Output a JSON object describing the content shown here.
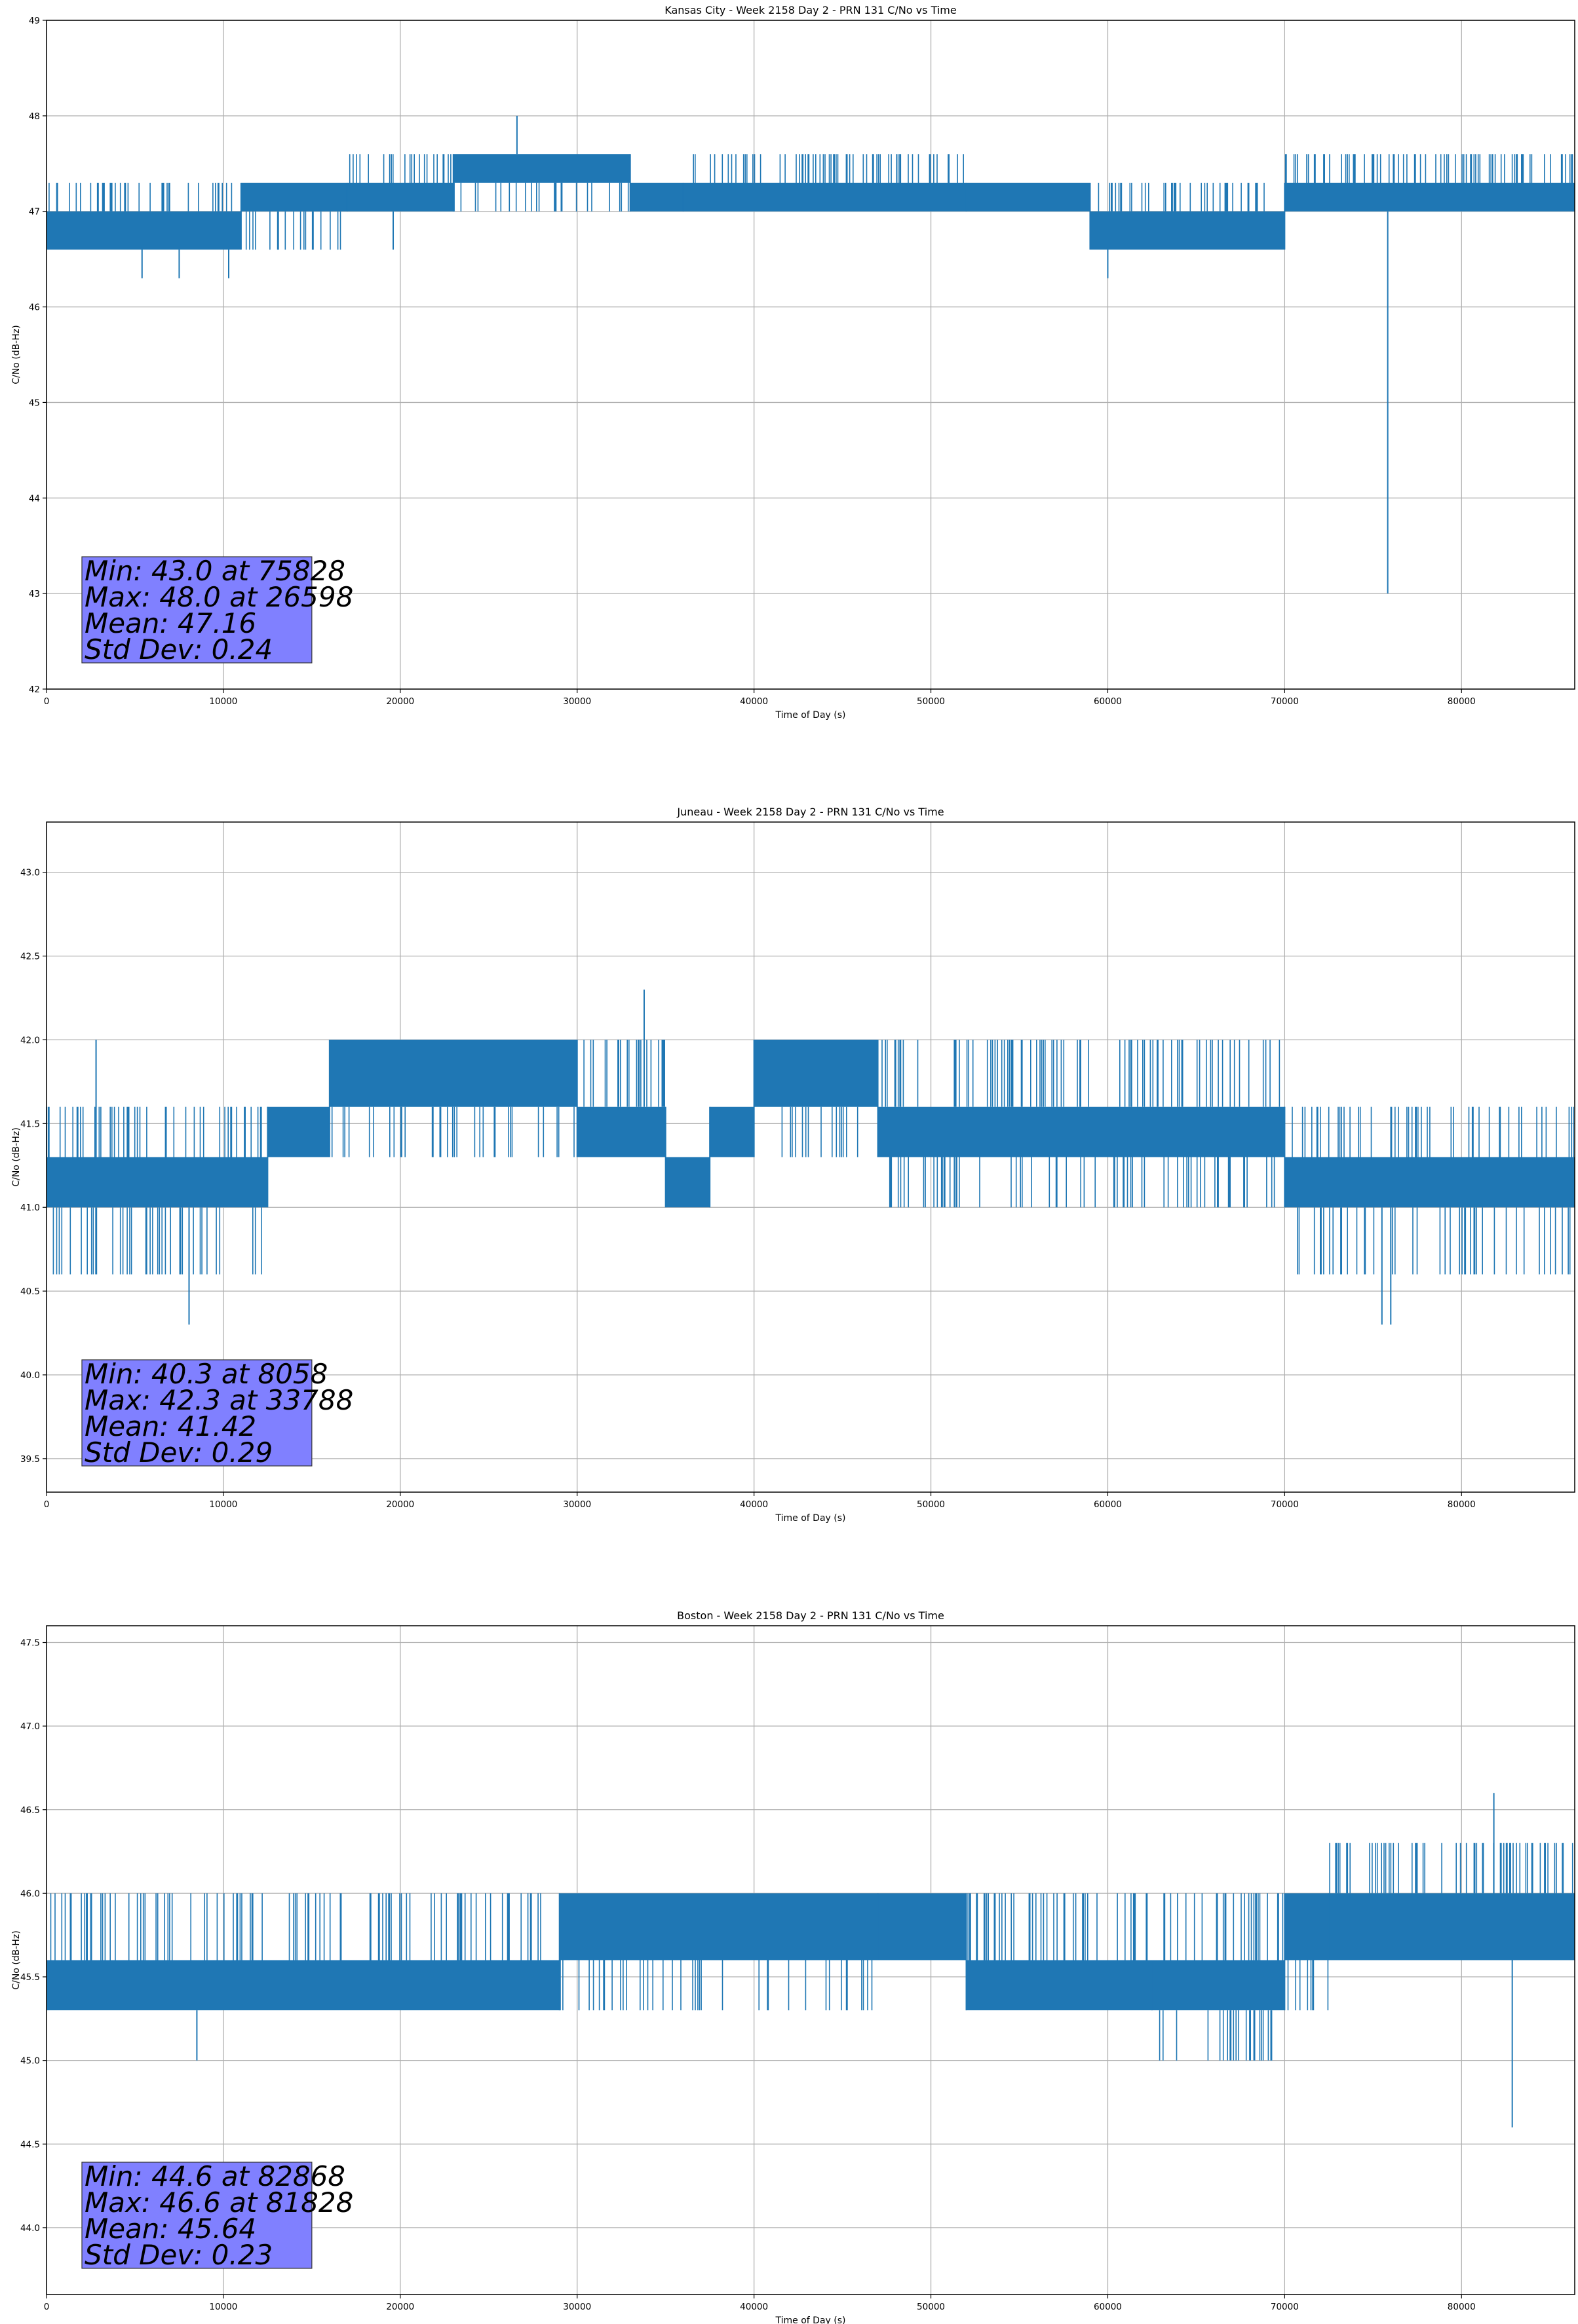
{
  "chart_data": [
    {
      "type": "line",
      "title": "Kansas City - Week 2158 Day 2 - PRN 131 C/No vs Time",
      "xlabel": "Time of Day (s)",
      "ylabel": "C/No (dB-Hz)",
      "xlim": [
        0,
        86400
      ],
      "ylim": [
        42,
        49
      ],
      "xticks": [
        0,
        10000,
        20000,
        30000,
        40000,
        50000,
        60000,
        70000,
        80000
      ],
      "yticks": [
        "42",
        "43",
        "44",
        "45",
        "46",
        "47",
        "48",
        "49"
      ],
      "grid": true,
      "color": "#1f77b4",
      "levels": [
        46.6,
        47.0,
        47.3,
        47.6
      ],
      "segments": [
        {
          "x": [
            0,
            11000
          ],
          "low": 46.6,
          "high": 47.0,
          "flick_high": 47.3
        },
        {
          "x": [
            11000,
            17000
          ],
          "low": 47.0,
          "high": 47.3,
          "flick_low": 46.6
        },
        {
          "x": [
            17000,
            23000
          ],
          "low": 47.0,
          "high": 47.3,
          "flick_high": 47.6
        },
        {
          "x": [
            23000,
            33000
          ],
          "low": 47.3,
          "high": 47.6,
          "flick_low": 47.0
        },
        {
          "x": [
            33000,
            36000
          ],
          "low": 47.0,
          "high": 47.3
        },
        {
          "x": [
            36000,
            52000
          ],
          "low": 47.0,
          "high": 47.3,
          "flick_high": 47.6
        },
        {
          "x": [
            52000,
            59000
          ],
          "low": 47.0,
          "high": 47.3
        },
        {
          "x": [
            59000,
            70000
          ],
          "low": 46.6,
          "high": 47.0,
          "flick_high": 47.3
        },
        {
          "x": [
            70000,
            86400
          ],
          "low": 47.0,
          "high": 47.3,
          "flick_high": 47.6
        }
      ],
      "spikes": [
        {
          "x": 5400,
          "y": 46.3
        },
        {
          "x": 7500,
          "y": 46.3
        },
        {
          "x": 10300,
          "y": 46.3
        },
        {
          "x": 19600,
          "y": 46.6
        },
        {
          "x": 26598,
          "y": 48.0
        },
        {
          "x": 60000,
          "y": 46.3
        },
        {
          "x": 75828,
          "y": 43.0
        }
      ],
      "stats": {
        "min": "Min: 43.0 at 75828",
        "max": "Max: 48.0 at 26598",
        "mean": "Mean: 47.16",
        "std": "Std Dev: 0.24"
      }
    },
    {
      "type": "line",
      "title": "Juneau - Week 2158 Day 2 - PRN 131 C/No vs Time",
      "xlabel": "Time of Day (s)",
      "ylabel": "C/No (dB-Hz)",
      "xlim": [
        0,
        86400
      ],
      "ylim": [
        39.3,
        43.3
      ],
      "xticks": [
        0,
        10000,
        20000,
        30000,
        40000,
        50000,
        60000,
        70000,
        80000
      ],
      "yticks": [
        "39.5",
        "40.0",
        "40.5",
        "41.0",
        "41.5",
        "42.0",
        "42.5",
        "43.0"
      ],
      "grid": true,
      "color": "#1f77b4",
      "levels": [
        40.6,
        41.0,
        41.3,
        41.6,
        42.0
      ],
      "segments": [
        {
          "x": [
            0,
            12500
          ],
          "low": 41.0,
          "high": 41.3,
          "flick_high": 41.6,
          "flick_low": 40.6
        },
        {
          "x": [
            12500,
            16000
          ],
          "low": 41.3,
          "high": 41.6
        },
        {
          "x": [
            16000,
            30000
          ],
          "low": 41.6,
          "high": 42.0,
          "flick_low": 41.3
        },
        {
          "x": [
            30000,
            35000
          ],
          "low": 41.3,
          "high": 41.6,
          "flick_high": 42.0
        },
        {
          "x": [
            35000,
            37500
          ],
          "low": 41.0,
          "high": 41.3
        },
        {
          "x": [
            37500,
            40000
          ],
          "low": 41.3,
          "high": 41.6
        },
        {
          "x": [
            40000,
            47000
          ],
          "low": 41.6,
          "high": 42.0,
          "flick_low": 41.3
        },
        {
          "x": [
            47000,
            70000
          ],
          "low": 41.3,
          "high": 41.6,
          "flick_high": 42.0,
          "flick_low": 41.0
        },
        {
          "x": [
            70000,
            86400
          ],
          "low": 41.0,
          "high": 41.3,
          "flick_high": 41.6,
          "flick_low": 40.6
        }
      ],
      "spikes": [
        {
          "x": 2800,
          "y": 42.0
        },
        {
          "x": 8058,
          "y": 40.3
        },
        {
          "x": 33788,
          "y": 42.3
        },
        {
          "x": 75500,
          "y": 40.3
        },
        {
          "x": 76000,
          "y": 40.3
        }
      ],
      "stats": {
        "min": "Min: 40.3 at 8058",
        "max": "Max: 42.3 at 33788",
        "mean": "Mean: 41.42",
        "std": "Std Dev: 0.29"
      }
    },
    {
      "type": "line",
      "title": "Boston - Week 2158 Day 2 - PRN 131 C/No vs Time",
      "xlabel": "Time of Day (s)",
      "ylabel": "C/No (dB-Hz)",
      "xlim": [
        0,
        86400
      ],
      "ylim": [
        43.6,
        47.6
      ],
      "xticks": [
        0,
        10000,
        20000,
        30000,
        40000,
        50000,
        60000,
        70000,
        80000
      ],
      "yticks": [
        "44.0",
        "44.5",
        "45.0",
        "45.5",
        "46.0",
        "46.5",
        "47.0",
        "47.5"
      ],
      "grid": true,
      "color": "#1f77b4",
      "levels": [
        45.0,
        45.3,
        45.6,
        46.0,
        46.3
      ],
      "segments": [
        {
          "x": [
            0,
            29000
          ],
          "low": 45.3,
          "high": 45.6,
          "flick_high": 46.0
        },
        {
          "x": [
            29000,
            47000
          ],
          "low": 45.6,
          "high": 46.0,
          "flick_low": 45.3
        },
        {
          "x": [
            47000,
            52000
          ],
          "low": 45.6,
          "high": 46.0
        },
        {
          "x": [
            52000,
            62500
          ],
          "low": 45.3,
          "high": 45.6,
          "flick_high": 46.0
        },
        {
          "x": [
            62500,
            70000
          ],
          "low": 45.3,
          "high": 45.6,
          "flick_high": 46.0,
          "flick_low": 45.0
        },
        {
          "x": [
            70000,
            72500
          ],
          "low": 45.6,
          "high": 46.0,
          "flick_low": 45.3
        },
        {
          "x": [
            72500,
            86400
          ],
          "low": 45.6,
          "high": 46.0,
          "flick_high": 46.3
        }
      ],
      "spikes": [
        {
          "x": 8500,
          "y": 45.0
        },
        {
          "x": 81828,
          "y": 46.6
        },
        {
          "x": 82868,
          "y": 44.6
        }
      ],
      "stats": {
        "min": "Min: 44.6 at 82868",
        "max": "Max: 46.6 at 81828",
        "mean": "Mean: 45.64",
        "std": "Std Dev: 0.23"
      }
    }
  ]
}
